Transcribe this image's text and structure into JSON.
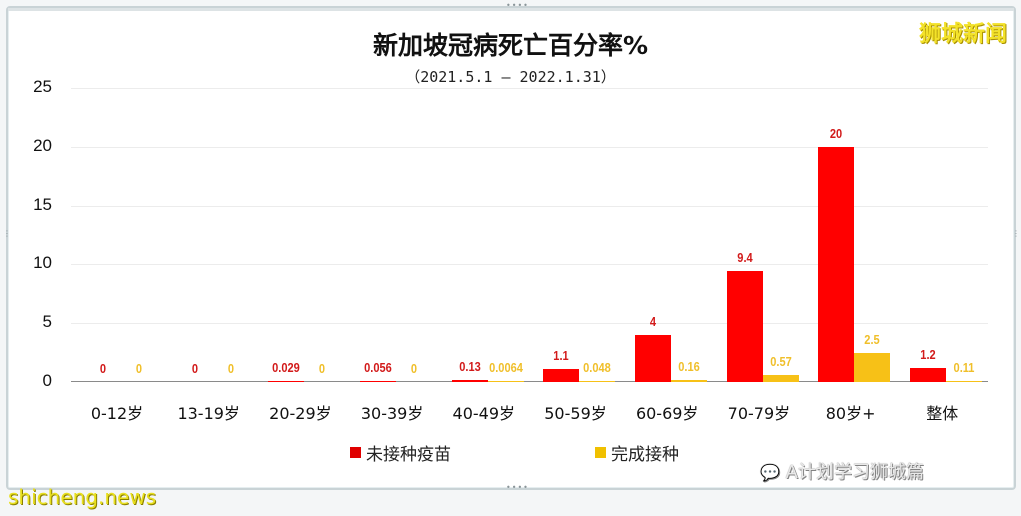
{
  "chart_data": {
    "type": "bar",
    "title": "新加坡冠病死亡百分率%",
    "subtitle": "（2021.5.1 – 2022.1.31）",
    "xlabel": "",
    "ylabel": "",
    "ylim": [
      0,
      25
    ],
    "yticks": [
      "0",
      "5",
      "10",
      "15",
      "20",
      "25"
    ],
    "grid": true,
    "legend_position": "bottom",
    "categories": [
      "0-12岁",
      "13-19岁",
      "20-29岁",
      "30-39岁",
      "40-49岁",
      "50-59岁",
      "60-69岁",
      "70-79岁",
      "80岁+",
      "整体"
    ],
    "series": [
      {
        "name": "未接种疫苗",
        "color": "#ff0000",
        "values": [
          0,
          0,
          0.029,
          0.056,
          0.13,
          1.1,
          4,
          9.4,
          20,
          1.2
        ],
        "labels": [
          "0",
          "0",
          "0.029",
          "0.056",
          "0.13",
          "1.1",
          "4",
          "9.4",
          "20",
          "1.2"
        ]
      },
      {
        "name": "完成接种",
        "color": "#f7c117",
        "values": [
          0,
          0,
          0,
          0,
          0.0064,
          0.048,
          0.16,
          0.57,
          2.5,
          0.11
        ],
        "labels": [
          "0",
          "0",
          "0",
          "0",
          "0.0064",
          "0.048",
          "0.16",
          "0.57",
          "2.5",
          "0.11"
        ]
      }
    ]
  },
  "brand": "狮城新闻",
  "footer": {
    "left": "shicheng.news",
    "right": "A计划学习狮城篇"
  }
}
